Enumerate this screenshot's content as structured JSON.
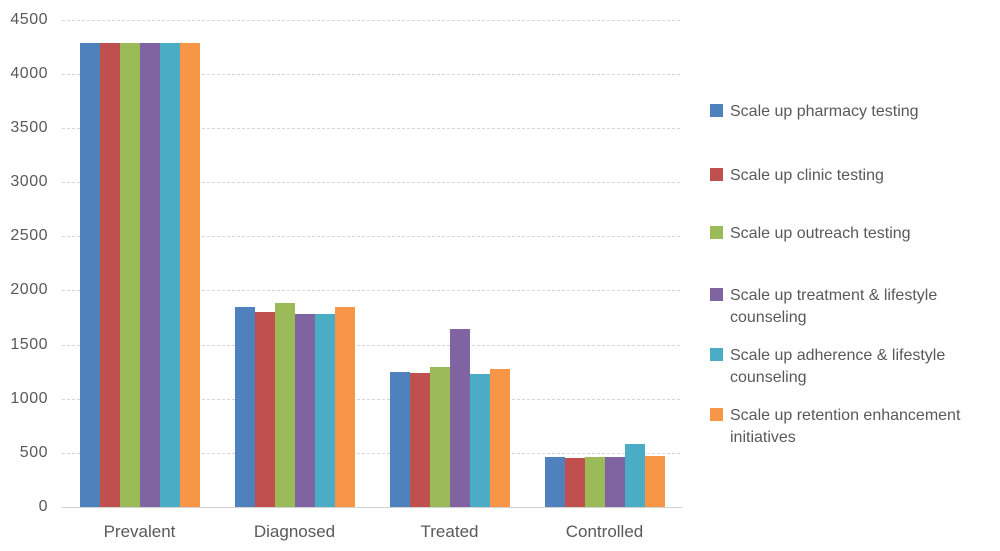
{
  "chart_data": {
    "type": "bar",
    "title": "",
    "xlabel": "",
    "ylabel": "",
    "categories": [
      "Prevalent",
      "Diagnosed",
      "Treated",
      "Controlled"
    ],
    "series": [
      {
        "name": "Scale up pharmacy testing",
        "color": "#4F81BD",
        "values": [
          4280,
          1845,
          1250,
          460
        ]
      },
      {
        "name": "Scale up clinic testing",
        "color": "#C0504D",
        "values": [
          4280,
          1800,
          1240,
          455
        ]
      },
      {
        "name": "Scale up outreach testing",
        "color": "#9BBB59",
        "values": [
          4280,
          1880,
          1295,
          460
        ]
      },
      {
        "name": "Scale up treatment & lifestyle counseling",
        "color": "#8064A2",
        "values": [
          4280,
          1785,
          1640,
          460
        ]
      },
      {
        "name": "Scale up adherence & lifestyle counseling",
        "color": "#4BACC6",
        "values": [
          4280,
          1785,
          1230,
          580
        ]
      },
      {
        "name": "Scale up retention enhancement initiatives",
        "color": "#F79646",
        "values": [
          4280,
          1845,
          1270,
          470
        ]
      }
    ],
    "ylim": [
      0,
      4500
    ],
    "yticks": [
      0,
      500,
      1000,
      1500,
      2000,
      2500,
      3000,
      3500,
      4000,
      4500
    ],
    "grid": true,
    "gridline_style": "dotted",
    "legend_position": "right",
    "axis_text_color": "#595959",
    "gridline_color": "#D6D6D6",
    "plot_background": "#FFFFFF"
  }
}
